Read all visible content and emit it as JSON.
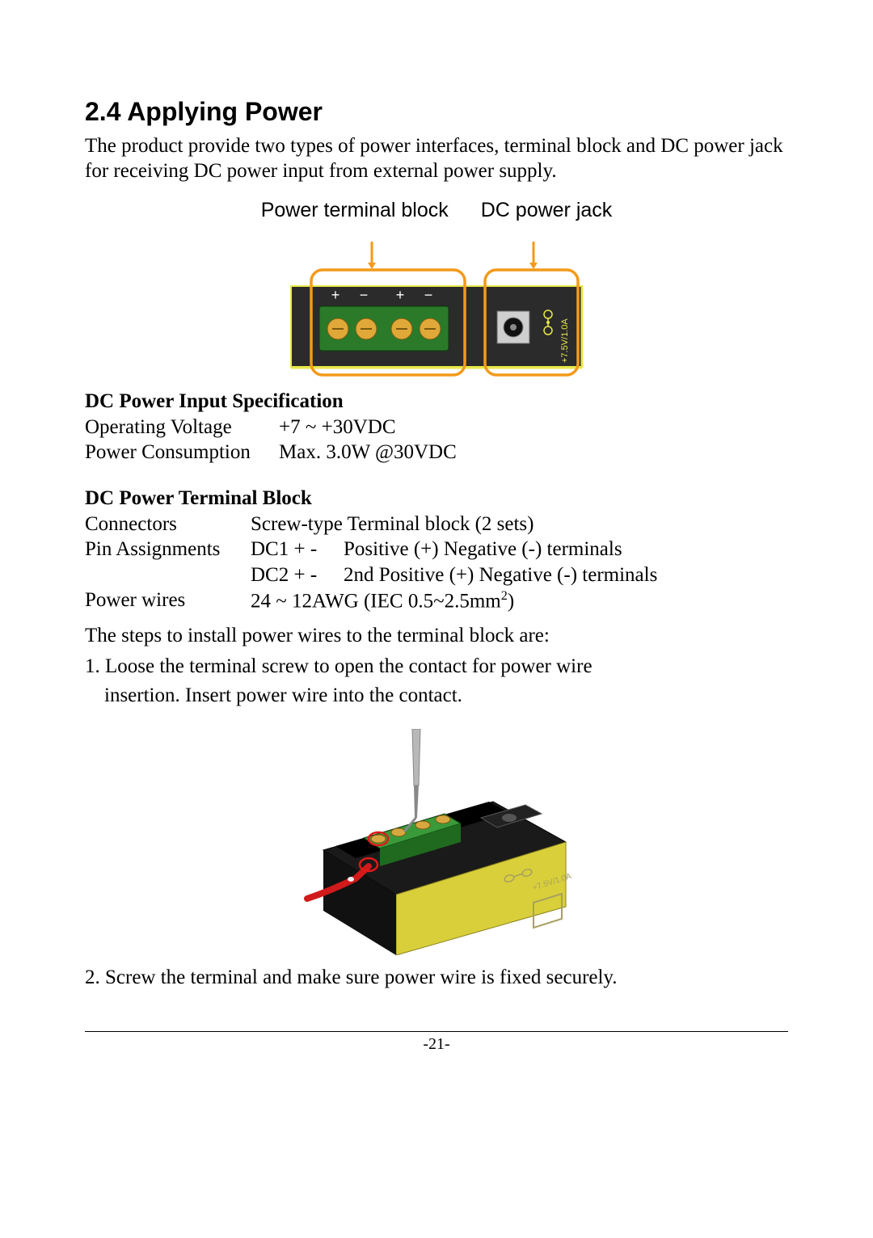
{
  "heading": "2.4 Applying Power",
  "intro": "The product provide two types of power interfaces, terminal block and DC power jack for receiving DC power input from external power supply.",
  "fig1": {
    "label_left": "Power terminal block",
    "label_right": "DC power jack",
    "colors": {
      "outline_orange": "#f39a1a",
      "device_body": "#2b2b2b",
      "device_edge": "#e8e84a",
      "terminal_green": "#2a7a2a",
      "terminal_gold": "#e0a838",
      "jack_silver": "#cfcfcf",
      "text_white": "#ffffff",
      "arrow": "#f39a1a"
    },
    "pm_symbols": [
      "+",
      "−",
      "+",
      "−"
    ],
    "jack_text": "+7.5V/1.0A"
  },
  "spec_heading": "DC Power Input Specification",
  "spec_rows": [
    {
      "label": "Operating Voltage",
      "value": "+7 ~ +30VDC"
    },
    {
      "label": "Power Consumption",
      "value": "Max. 3.0W @30VDC"
    }
  ],
  "block_heading": "DC Power Terminal Block",
  "block_rows": [
    {
      "label": "Connectors",
      "col2": "",
      "rest": "Screw-type Terminal block (2 sets)"
    },
    {
      "label": "Pin Assignments",
      "col2": "DC1 +  -",
      "rest": "Positive (+) Negative (-) terminals"
    },
    {
      "label": "",
      "col2": "DC2 +  -",
      "rest": "2nd Positive (+) Negative (-) terminals"
    },
    {
      "label": "Power wires",
      "col2": "",
      "rest_html": "24 ~ 12AWG (IEC 0.5~2.5mm²)"
    }
  ],
  "steps_intro": "The steps to install power wires to the terminal block are:",
  "step1_line1": "1. Loose the terminal screw to open the contact for power wire",
  "step1_line2": "insertion. Insert power wire into the contact.",
  "step2": "2. Screw the terminal and make sure power wire is fixed securely.",
  "fig2": {
    "colors": {
      "body_top": "#1a1a1a",
      "body_side": "#d9cf3a",
      "terminal_green": "#3a9a3a",
      "terminal_gold": "#d8a840",
      "screwdriver": "#b8b8b8",
      "wire_red": "#d11a1a",
      "circle_red": "#e01a1a",
      "jack_print": "#a8a060"
    }
  },
  "page_number": "-21-"
}
